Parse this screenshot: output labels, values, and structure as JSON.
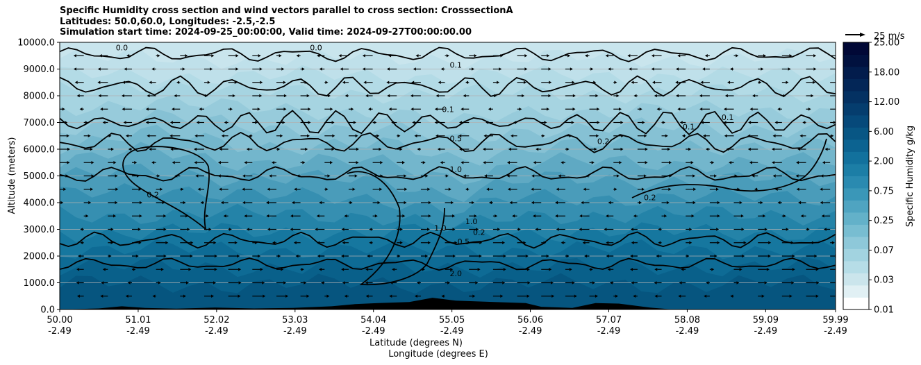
{
  "chart_data": {
    "type": "heatmap",
    "subtype": "filled-contour cross section with contour lines and wind vectors",
    "title_lines": [
      "Specific Humidity cross section and wind vectors parallel to cross section: CrosssectionA",
      "Latitudes: 50.0,60.0, Longitudes: -2.5,-2.5",
      "Simulation start time: 2024-09-25_00:00:00, Valid time: 2024-09-27T00:00:00.00"
    ],
    "xlabel": "Latitude (degrees N)",
    "xlabel2": "Longitude (degrees E)",
    "ylabel": "Altitude (meters)",
    "colorbar_label": "Specific Humidity g/kg",
    "xlim": [
      50.0,
      59.99
    ],
    "ylim": [
      0,
      10000
    ],
    "x_ticks": [
      {
        "lat": 50.0,
        "lat_label": "50.00",
        "lon_label": "-2.49"
      },
      {
        "lat": 51.01,
        "lat_label": "51.01",
        "lon_label": "-2.49"
      },
      {
        "lat": 52.02,
        "lat_label": "52.02",
        "lon_label": "-2.49"
      },
      {
        "lat": 53.03,
        "lat_label": "53.03",
        "lon_label": "-2.49"
      },
      {
        "lat": 54.04,
        "lat_label": "54.04",
        "lon_label": "-2.49"
      },
      {
        "lat": 55.05,
        "lat_label": "55.05",
        "lon_label": "-2.49"
      },
      {
        "lat": 56.06,
        "lat_label": "56.06",
        "lon_label": "-2.49"
      },
      {
        "lat": 57.07,
        "lat_label": "57.07",
        "lon_label": "-2.49"
      },
      {
        "lat": 58.08,
        "lat_label": "58.08",
        "lon_label": "-2.49"
      },
      {
        "lat": 59.09,
        "lat_label": "59.09",
        "lon_label": "-2.49"
      },
      {
        "lat": 59.99,
        "lat_label": "59.99",
        "lon_label": "-2.49"
      }
    ],
    "y_ticks": [
      {
        "value": 0,
        "label": "0.0"
      },
      {
        "value": 1000,
        "label": "1000.0"
      },
      {
        "value": 2000,
        "label": "2000.0"
      },
      {
        "value": 3000,
        "label": "3000.0"
      },
      {
        "value": 4000,
        "label": "4000.0"
      },
      {
        "value": 5000,
        "label": "5000.0"
      },
      {
        "value": 6000,
        "label": "6000.0"
      },
      {
        "value": 7000,
        "label": "7000.0"
      },
      {
        "value": 8000,
        "label": "8000.0"
      },
      {
        "value": 9000,
        "label": "9000.0"
      },
      {
        "value": 10000,
        "label": "10000.0"
      }
    ],
    "colorbar_levels": [
      "0.01",
      "0.03",
      "0.07",
      "0.25",
      "0.75",
      "2.00",
      "6.00",
      "12.00",
      "18.00",
      "25.00"
    ],
    "colorbar_colors": [
      "#ffffff",
      "#e1f0f4",
      "#cbe5ec",
      "#b6dde7",
      "#a2d3e0",
      "#8ec8d9",
      "#78bdd1",
      "#63b1c9",
      "#4fa4c1",
      "#3a97b8",
      "#2a8ab0",
      "#1c7ea6",
      "#12719d",
      "#0c6391",
      "#085684",
      "#06497a",
      "#053d6e",
      "#043162",
      "#032657",
      "#021c4c",
      "#01113f",
      "#010836"
    ],
    "wind_reference": {
      "label": "25 m/s",
      "speed": 25
    },
    "contour_labels": [
      {
        "text": "0.0",
        "lat": 50.8,
        "alt": 9800
      },
      {
        "text": "0.0",
        "lat": 53.3,
        "alt": 9800
      },
      {
        "text": "0.1",
        "lat": 55.1,
        "alt": 9150
      },
      {
        "text": "0.1",
        "lat": 55.0,
        "alt": 7500
      },
      {
        "text": "0.5",
        "lat": 55.1,
        "alt": 6400
      },
      {
        "text": "1.0",
        "lat": 55.1,
        "alt": 5250
      },
      {
        "text": "1.0",
        "lat": 54.9,
        "alt": 3050
      },
      {
        "text": "1.0",
        "lat": 55.3,
        "alt": 3300
      },
      {
        "text": "0.5",
        "lat": 55.2,
        "alt": 2550
      },
      {
        "text": "0.2",
        "lat": 55.4,
        "alt": 2900
      },
      {
        "text": "2.0",
        "lat": 55.1,
        "alt": 1350
      },
      {
        "text": "0.2",
        "lat": 51.2,
        "alt": 4300
      },
      {
        "text": "0.2",
        "lat": 57.0,
        "alt": 6300
      },
      {
        "text": "0.1",
        "lat": 58.1,
        "alt": 6850
      },
      {
        "text": "0.1",
        "lat": 58.6,
        "alt": 7200
      },
      {
        "text": "0.2",
        "lat": 57.6,
        "alt": 4200
      }
    ]
  }
}
